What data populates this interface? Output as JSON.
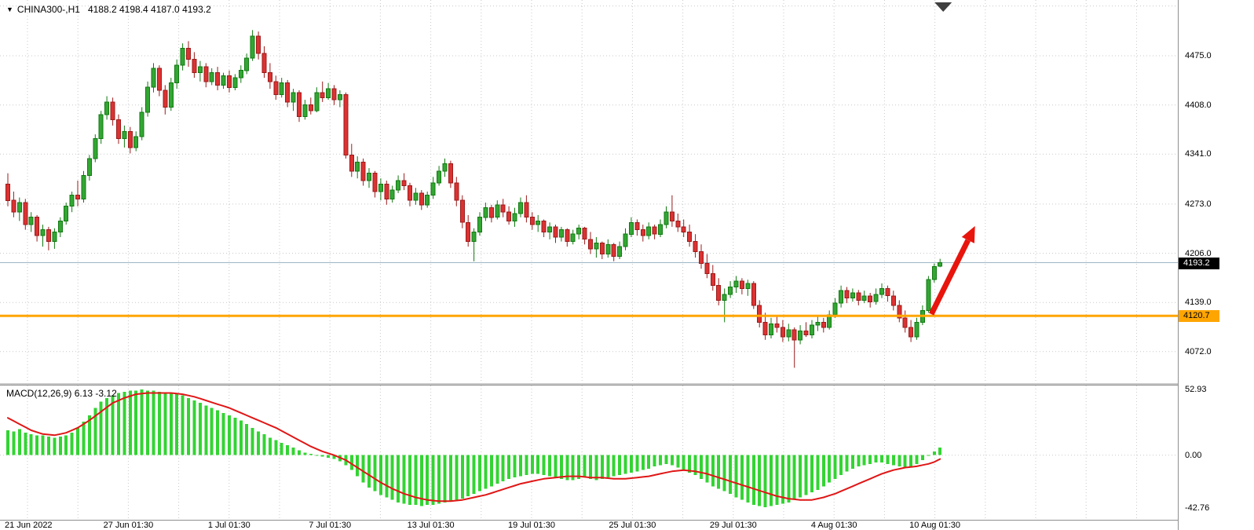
{
  "header": {
    "marker": "▼",
    "symbol": "CHINA300-,H1",
    "ohlc": "4188.2 4198.4 4187.0 4193.2"
  },
  "colors": {
    "grid": "#c9c9c9",
    "up": "#33a633",
    "up_border": "#117a11",
    "down": "#dc3232",
    "down_border": "#9c1b1b",
    "current_price_line": "#9cb6c4",
    "shift_marker": "#3f3f3f"
  },
  "chart_data": [
    {
      "type": "candlestick",
      "symbol": "CHINA300-",
      "timeframe": "H1",
      "ohlc_current": {
        "open": 4188.2,
        "high": 4198.4,
        "low": 4187.0,
        "close": 4193.2
      },
      "ylim": [
        4029,
        4551
      ],
      "y_ticks": [
        "4475.0",
        "4408.0",
        "4341.0",
        "4273.0",
        "4206.0",
        "4139.0",
        "4072.0"
      ],
      "extra_gridlines": [
        4542.9
      ],
      "grid": "dotted",
      "current_price": 4193.2,
      "current_price_label": "4193.2",
      "horizontal_line": {
        "price": 4120.7,
        "label": "4120.7",
        "color": "#ffa500"
      },
      "x_labels": [
        "21 Jun 2022",
        "27 Jun 01:30",
        "1 Jul 01:30",
        "7 Jul 01:30",
        "13 Jul 01:30",
        "19 Jul 01:30",
        "25 Jul 01:30",
        "29 Jul 01:30",
        "4 Aug 01:30",
        "10 Aug 01:30"
      ],
      "arrow": {
        "from_index": 158.5,
        "from_price": 4123,
        "to_index": 166,
        "to_price": 4243,
        "color": "#e8150d"
      },
      "candles": [
        [
          4300,
          4315,
          4270,
          4278
        ],
        [
          4278,
          4290,
          4255,
          4262
        ],
        [
          4262,
          4282,
          4250,
          4275
        ],
        [
          4275,
          4280,
          4238,
          4245
        ],
        [
          4245,
          4262,
          4235,
          4255
        ],
        [
          4255,
          4258,
          4222,
          4230
        ],
        [
          4230,
          4245,
          4215,
          4238
        ],
        [
          4238,
          4242,
          4210,
          4222
        ],
        [
          4222,
          4240,
          4212,
          4235
        ],
        [
          4235,
          4255,
          4228,
          4250
        ],
        [
          4250,
          4275,
          4245,
          4270
        ],
        [
          4270,
          4290,
          4262,
          4285
        ],
        [
          4285,
          4305,
          4270,
          4280
        ],
        [
          4280,
          4318,
          4275,
          4312
        ],
        [
          4312,
          4340,
          4305,
          4335
        ],
        [
          4335,
          4368,
          4330,
          4362
        ],
        [
          4362,
          4400,
          4355,
          4395
        ],
        [
          4395,
          4420,
          4388,
          4412
        ],
        [
          4412,
          4418,
          4380,
          4388
        ],
        [
          4388,
          4395,
          4355,
          4362
        ],
        [
          4362,
          4380,
          4350,
          4372
        ],
        [
          4372,
          4378,
          4342,
          4350
        ],
        [
          4350,
          4372,
          4345,
          4365
        ],
        [
          4365,
          4405,
          4360,
          4398
        ],
        [
          4398,
          4440,
          4392,
          4432
        ],
        [
          4432,
          4465,
          4425,
          4458
        ],
        [
          4458,
          4462,
          4420,
          4428
        ],
        [
          4428,
          4435,
          4395,
          4405
        ],
        [
          4405,
          4445,
          4400,
          4438
        ],
        [
          4438,
          4470,
          4430,
          4462
        ],
        [
          4462,
          4492,
          4455,
          4485
        ],
        [
          4485,
          4495,
          4460,
          4470
        ],
        [
          4470,
          4480,
          4445,
          4452
        ],
        [
          4452,
          4468,
          4440,
          4460
        ],
        [
          4460,
          4465,
          4432,
          4440
        ],
        [
          4440,
          4458,
          4435,
          4452
        ],
        [
          4452,
          4460,
          4428,
          4435
        ],
        [
          4435,
          4452,
          4430,
          4448
        ],
        [
          4448,
          4455,
          4425,
          4432
        ],
        [
          4432,
          4450,
          4428,
          4445
        ],
        [
          4445,
          4462,
          4438,
          4455
        ],
        [
          4455,
          4478,
          4450,
          4472
        ],
        [
          4472,
          4510,
          4468,
          4502
        ],
        [
          4502,
          4508,
          4470,
          4478
        ],
        [
          4478,
          4488,
          4445,
          4452
        ],
        [
          4452,
          4465,
          4430,
          4440
        ],
        [
          4440,
          4448,
          4415,
          4422
        ],
        [
          4422,
          4445,
          4418,
          4438
        ],
        [
          4438,
          4442,
          4405,
          4412
        ],
        [
          4412,
          4430,
          4400,
          4425
        ],
        [
          4425,
          4428,
          4385,
          4392
        ],
        [
          4392,
          4415,
          4388,
          4408
        ],
        [
          4408,
          4418,
          4395,
          4400
        ],
        [
          4400,
          4432,
          4398,
          4425
        ],
        [
          4425,
          4440,
          4412,
          4418
        ],
        [
          4418,
          4438,
          4415,
          4430
        ],
        [
          4430,
          4435,
          4408,
          4415
        ],
        [
          4415,
          4428,
          4405,
          4422
        ],
        [
          4422,
          4425,
          4335,
          4340
        ],
        [
          4340,
          4355,
          4310,
          4318
        ],
        [
          4318,
          4338,
          4308,
          4330
        ],
        [
          4330,
          4335,
          4298,
          4305
        ],
        [
          4305,
          4322,
          4295,
          4315
        ],
        [
          4315,
          4318,
          4282,
          4290
        ],
        [
          4290,
          4308,
          4278,
          4300
        ],
        [
          4300,
          4305,
          4272,
          4280
        ],
        [
          4280,
          4298,
          4275,
          4292
        ],
        [
          4292,
          4312,
          4288,
          4305
        ],
        [
          4305,
          4315,
          4292,
          4298
        ],
        [
          4298,
          4302,
          4270,
          4278
        ],
        [
          4278,
          4295,
          4272,
          4288
        ],
        [
          4288,
          4292,
          4265,
          4272
        ],
        [
          4272,
          4290,
          4268,
          4285
        ],
        [
          4285,
          4310,
          4280,
          4302
        ],
        [
          4302,
          4325,
          4298,
          4318
        ],
        [
          4318,
          4335,
          4310,
          4328
        ],
        [
          4328,
          4332,
          4295,
          4302
        ],
        [
          4302,
          4310,
          4270,
          4278
        ],
        [
          4278,
          4285,
          4240,
          4248
        ],
        [
          4248,
          4258,
          4215,
          4222
        ],
        [
          4222,
          4240,
          4195,
          4235
        ],
        [
          4235,
          4262,
          4230,
          4255
        ],
        [
          4255,
          4275,
          4250,
          4268
        ],
        [
          4268,
          4272,
          4248,
          4255
        ],
        [
          4255,
          4278,
          4252,
          4272
        ],
        [
          4272,
          4280,
          4255,
          4262
        ],
        [
          4262,
          4270,
          4245,
          4250
        ],
        [
          4250,
          4268,
          4242,
          4260
        ],
        [
          4260,
          4282,
          4255,
          4275
        ],
        [
          4275,
          4285,
          4248,
          4255
        ],
        [
          4255,
          4262,
          4238,
          4245
        ],
        [
          4245,
          4258,
          4235,
          4250
        ],
        [
          4250,
          4252,
          4228,
          4235
        ],
        [
          4235,
          4248,
          4225,
          4242
        ],
        [
          4242,
          4245,
          4220,
          4228
        ],
        [
          4228,
          4242,
          4222,
          4238
        ],
        [
          4238,
          4240,
          4215,
          4222
        ],
        [
          4222,
          4238,
          4218,
          4232
        ],
        [
          4232,
          4245,
          4225,
          4240
        ],
        [
          4240,
          4242,
          4218,
          4225
        ],
        [
          4225,
          4235,
          4205,
          4212
        ],
        [
          4212,
          4228,
          4200,
          4220
        ],
        [
          4220,
          4222,
          4198,
          4205
        ],
        [
          4205,
          4225,
          4200,
          4218
        ],
        [
          4218,
          4220,
          4195,
          4202
        ],
        [
          4202,
          4222,
          4198,
          4215
        ],
        [
          4215,
          4240,
          4210,
          4232
        ],
        [
          4232,
          4255,
          4228,
          4248
        ],
        [
          4248,
          4252,
          4230,
          4238
        ],
        [
          4238,
          4245,
          4222,
          4230
        ],
        [
          4230,
          4248,
          4225,
          4242
        ],
        [
          4242,
          4245,
          4225,
          4232
        ],
        [
          4232,
          4252,
          4228,
          4245
        ],
        [
          4245,
          4270,
          4240,
          4262
        ],
        [
          4262,
          4285,
          4242,
          4250
        ],
        [
          4250,
          4260,
          4235,
          4242
        ],
        [
          4242,
          4252,
          4228,
          4235
        ],
        [
          4235,
          4245,
          4215,
          4222
        ],
        [
          4222,
          4232,
          4200,
          4208
        ],
        [
          4208,
          4218,
          4185,
          4192
        ],
        [
          4192,
          4205,
          4172,
          4178
        ],
        [
          4178,
          4190,
          4155,
          4162
        ],
        [
          4162,
          4172,
          4135,
          4142
        ],
        [
          4142,
          4158,
          4112,
          4150
        ],
        [
          4150,
          4168,
          4145,
          4160
        ],
        [
          4160,
          4175,
          4152,
          4168
        ],
        [
          4168,
          4172,
          4150,
          4158
        ],
        [
          4158,
          4170,
          4148,
          4165
        ],
        [
          4165,
          4168,
          4130,
          4135
        ],
        [
          4135,
          4142,
          4105,
          4112
        ],
        [
          4112,
          4125,
          4088,
          4095
        ],
        [
          4095,
          4118,
          4090,
          4110
        ],
        [
          4110,
          4122,
          4098,
          4105
        ],
        [
          4105,
          4115,
          4085,
          4092
        ],
        [
          4092,
          4110,
          4086,
          4102
        ],
        [
          4102,
          4105,
          4050,
          4088
        ],
        [
          4088,
          4108,
          4082,
          4100
        ],
        [
          4100,
          4112,
          4092,
          4095
        ],
        [
          4095,
          4115,
          4090,
          4108
        ],
        [
          4108,
          4120,
          4100,
          4112
        ],
        [
          4112,
          4118,
          4098,
          4105
        ],
        [
          4105,
          4128,
          4102,
          4122
        ],
        [
          4122,
          4145,
          4118,
          4138
        ],
        [
          4138,
          4162,
          4132,
          4155
        ],
        [
          4155,
          4160,
          4138,
          4145
        ],
        [
          4145,
          4158,
          4140,
          4152
        ],
        [
          4152,
          4156,
          4135,
          4142
        ],
        [
          4142,
          4155,
          4138,
          4148
        ],
        [
          4148,
          4152,
          4132,
          4140
        ],
        [
          4140,
          4158,
          4136,
          4150
        ],
        [
          4150,
          4165,
          4145,
          4158
        ],
        [
          4158,
          4162,
          4140,
          4148
        ],
        [
          4148,
          4155,
          4128,
          4135
        ],
        [
          4135,
          4142,
          4112,
          4118
        ],
        [
          4118,
          4128,
          4098,
          4105
        ],
        [
          4105,
          4115,
          4085,
          4092
        ],
        [
          4092,
          4118,
          4088,
          4112
        ],
        [
          4112,
          4135,
          4108,
          4128
        ],
        [
          4128,
          4175,
          4125,
          4170
        ],
        [
          4170,
          4192,
          4166,
          4188
        ],
        [
          4188.2,
          4198.4,
          4187.0,
          4193.2
        ]
      ]
    },
    {
      "type": "macd-histogram",
      "label": "MACD(12,26,9) 6.13 -3.12",
      "params": "12,26,9",
      "macd_value": 6.13,
      "signal_value": -3.12,
      "ylim": [
        -52,
        56
      ],
      "y_ticks": [
        "52.93",
        "0.00",
        "-42.76"
      ],
      "histogram_color": "#33d433",
      "signal_color": "#e01616",
      "histogram": [
        20,
        19,
        21,
        18,
        17,
        16,
        16,
        15,
        14,
        15,
        16,
        18,
        22,
        27,
        32,
        38,
        43,
        46,
        48,
        50,
        51,
        52,
        52,
        53,
        52,
        52,
        51,
        50,
        50,
        49,
        48,
        46,
        44,
        42,
        40,
        38,
        36,
        34,
        32,
        30,
        28,
        25,
        22,
        19,
        17,
        14,
        12,
        10,
        8,
        6,
        4,
        2,
        1,
        0,
        -1,
        -2,
        -3,
        -5,
        -8,
        -12,
        -17,
        -22,
        -26,
        -29,
        -32,
        -34,
        -36,
        -38,
        -39,
        -40,
        -40,
        -41,
        -40,
        -40,
        -39,
        -38,
        -37,
        -36,
        -35,
        -33,
        -31,
        -29,
        -27,
        -25,
        -23,
        -21,
        -19,
        -18,
        -17,
        -16,
        -15,
        -15,
        -16,
        -17,
        -18,
        -19,
        -20,
        -20,
        -19,
        -18,
        -19,
        -20,
        -19,
        -18,
        -17,
        -16,
        -15,
        -14,
        -13,
        -12,
        -11,
        -9,
        -8,
        -7,
        -8,
        -10,
        -12,
        -14,
        -16,
        -19,
        -22,
        -25,
        -27,
        -29,
        -31,
        -34,
        -36,
        -38,
        -40,
        -41,
        -42,
        -41,
        -40,
        -39,
        -38,
        -36,
        -34,
        -32,
        -30,
        -28,
        -25,
        -22,
        -19,
        -16,
        -13,
        -11,
        -9,
        -8,
        -7,
        -6,
        -6,
        -7,
        -8,
        -9,
        -10,
        -9,
        -7,
        -4,
        0,
        3,
        6.13
      ],
      "signal": [
        30,
        27.5,
        25,
        22.5,
        20,
        18.5,
        17,
        16.5,
        16,
        17,
        18,
        20,
        22,
        25,
        28,
        31.5,
        35,
        38.5,
        42,
        44,
        46,
        47.5,
        49,
        49.5,
        50,
        50,
        50,
        50,
        50,
        49.5,
        49,
        48,
        47,
        45.5,
        44,
        42.5,
        41,
        39.5,
        38,
        36,
        34,
        32,
        30,
        28,
        26,
        24,
        22,
        19.5,
        17,
        14.5,
        12,
        9.5,
        7,
        5,
        3,
        1.5,
        0,
        -2,
        -4,
        -7,
        -10,
        -13,
        -16,
        -19,
        -22,
        -24.5,
        -27,
        -29,
        -31,
        -32.5,
        -34,
        -35,
        -36,
        -36.5,
        -37,
        -37,
        -37,
        -36.5,
        -36,
        -35,
        -34,
        -33,
        -32,
        -30.5,
        -29,
        -27.5,
        -26,
        -24.5,
        -23,
        -22,
        -21,
        -20,
        -19,
        -18.5,
        -18,
        -17.5,
        -17,
        -17,
        -17,
        -17.5,
        -18,
        -18,
        -18,
        -18.5,
        -19,
        -19,
        -19,
        -18.5,
        -18,
        -17.5,
        -17,
        -16,
        -15,
        -14,
        -13,
        -12.5,
        -12,
        -12.5,
        -13,
        -14,
        -15,
        -16.5,
        -18,
        -19.5,
        -21,
        -22.5,
        -24,
        -25.5,
        -27,
        -28.5,
        -30,
        -31.5,
        -33,
        -34,
        -35,
        -35.5,
        -36,
        -36,
        -36,
        -35,
        -34,
        -32.5,
        -31,
        -29,
        -27,
        -25,
        -23,
        -21,
        -19,
        -17,
        -15,
        -13.5,
        -12,
        -11,
        -10,
        -9.5,
        -9,
        -8,
        -7,
        -5.5,
        -3.12
      ]
    }
  ]
}
